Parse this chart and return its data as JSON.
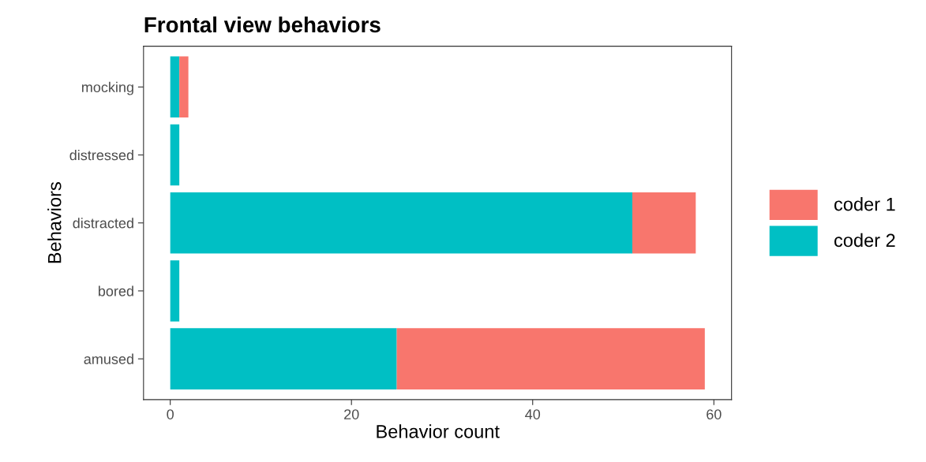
{
  "chart_data": {
    "type": "bar",
    "title": "Frontal view behaviors",
    "xlabel": "Behavior count",
    "ylabel": "Behaviors",
    "orientation": "horizontal",
    "stacked": true,
    "categories": [
      "mocking",
      "distressed",
      "distracted",
      "bored",
      "amused"
    ],
    "series": [
      {
        "name": "coder 2",
        "color": "#00bfc4",
        "values": [
          1,
          1,
          51,
          1,
          25
        ]
      },
      {
        "name": "coder 1",
        "color": "#f8766d",
        "values": [
          1,
          0,
          7,
          0,
          34
        ]
      }
    ],
    "xlim": [
      -2.95,
      61.95
    ],
    "xticks": [
      0,
      20,
      40,
      60
    ],
    "grid": false,
    "legend": "right"
  }
}
